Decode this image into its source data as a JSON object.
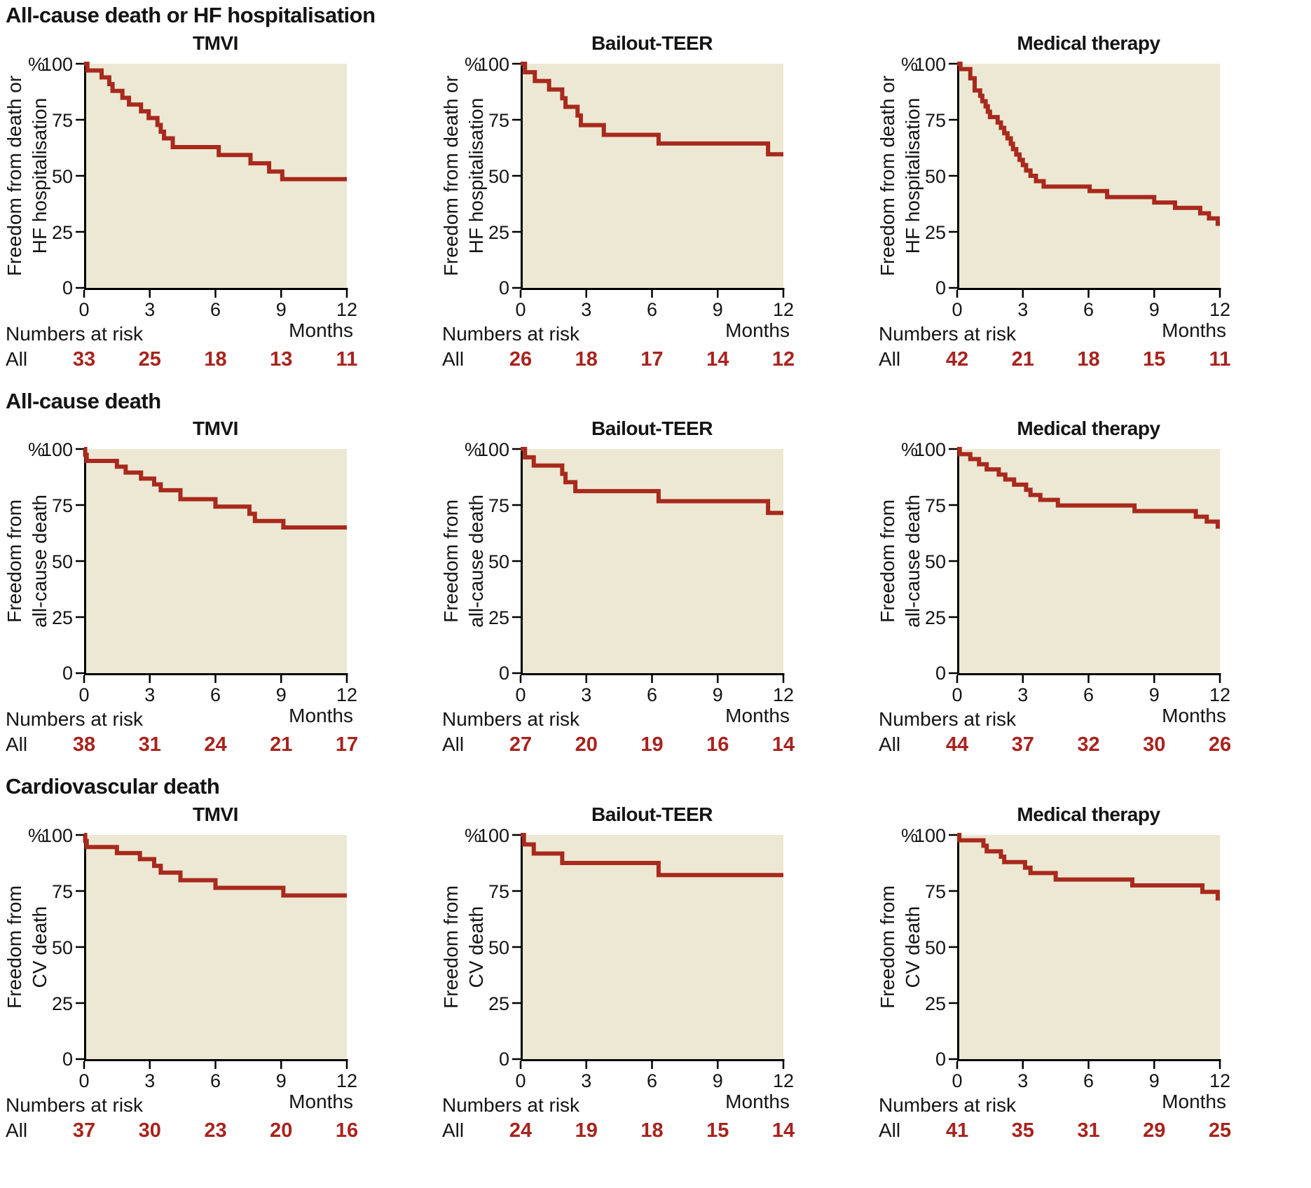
{
  "colors": {
    "curve": "#a8291d",
    "risk_number": "#a8231d",
    "plot_bg": "#ece8d3",
    "axis": "#000000"
  },
  "ui": {
    "percent": "%",
    "y_ticks": [
      "100",
      "75",
      "50",
      "25",
      "0"
    ],
    "x_ticks": [
      "0",
      "3",
      "6",
      "9",
      "12"
    ],
    "months": "Months",
    "numbers_at_risk": "Numbers at risk",
    "all": "All"
  },
  "chart_data": {
    "type": "line",
    "subtype": "kaplan-meier-step",
    "x_axis": {
      "label": "Months",
      "ticks": [
        0,
        3,
        6,
        9,
        12
      ],
      "range": [
        0,
        12
      ]
    },
    "y_axis": {
      "unit": "%",
      "ticks": [
        100,
        75,
        50,
        25,
        0
      ],
      "range": [
        0,
        100
      ]
    },
    "grid": false,
    "sections": [
      {
        "title": "All-cause death or HF hospitalisation",
        "ylabel": [
          "Freedom from death or",
          "HF hospitalisation"
        ],
        "panels": [
          {
            "title": "TMVI",
            "numbers_at_risk": {
              "label": "All",
              "values": [
                33,
                25,
                18,
                13,
                11
              ]
            },
            "curve_percent": [
              [
                0,
                100
              ],
              [
                0.15,
                97
              ],
              [
                0.8,
                93.9
              ],
              [
                1.15,
                90.9
              ],
              [
                1.3,
                87.9
              ],
              [
                1.75,
                84.8
              ],
              [
                2.05,
                81.8
              ],
              [
                2.6,
                78.8
              ],
              [
                2.95,
                75.8
              ],
              [
                3.35,
                72.7
              ],
              [
                3.5,
                69.7
              ],
              [
                3.65,
                66.7
              ],
              [
                4.05,
                62.8
              ],
              [
                6.15,
                59.3
              ],
              [
                7.6,
                55.6
              ],
              [
                8.45,
                51.9
              ],
              [
                9.05,
                48.5
              ]
            ]
          },
          {
            "title": "Bailout-TEER",
            "numbers_at_risk": {
              "label": "All",
              "values": [
                26,
                18,
                17,
                14,
                12
              ]
            },
            "curve_percent": [
              [
                0,
                100
              ],
              [
                0.2,
                96.2
              ],
              [
                0.65,
                92.3
              ],
              [
                1.3,
                88.5
              ],
              [
                1.9,
                84.6
              ],
              [
                2.05,
                80.8
              ],
              [
                2.6,
                76.9
              ],
              [
                2.75,
                72.6
              ],
              [
                3.8,
                68.3
              ],
              [
                6.3,
                64.4
              ],
              [
                11.3,
                59.6
              ]
            ]
          },
          {
            "title": "Medical therapy",
            "numbers_at_risk": {
              "label": "All",
              "values": [
                42,
                21,
                18,
                15,
                11
              ]
            },
            "curve_percent": [
              [
                0,
                100
              ],
              [
                0.15,
                97.6
              ],
              [
                0.6,
                93.5
              ],
              [
                0.8,
                88.1
              ],
              [
                1.05,
                85.7
              ],
              [
                1.15,
                83.3
              ],
              [
                1.3,
                81
              ],
              [
                1.4,
                78.6
              ],
              [
                1.5,
                76.2
              ],
              [
                1.85,
                73.8
              ],
              [
                2.0,
                71.4
              ],
              [
                2.15,
                69
              ],
              [
                2.3,
                66.7
              ],
              [
                2.45,
                64.3
              ],
              [
                2.55,
                61.9
              ],
              [
                2.7,
                59.5
              ],
              [
                2.85,
                57.1
              ],
              [
                3.0,
                54.8
              ],
              [
                3.15,
                52.4
              ],
              [
                3.35,
                50
              ],
              [
                3.6,
                47.6
              ],
              [
                3.95,
                45.2
              ],
              [
                6.05,
                43.2
              ],
              [
                6.85,
                40.5
              ],
              [
                9.0,
                38.1
              ],
              [
                9.95,
                35.7
              ],
              [
                11.1,
                33.3
              ],
              [
                11.5,
                31
              ],
              [
                11.9,
                28.6
              ]
            ]
          }
        ]
      },
      {
        "title": "All-cause death",
        "ylabel": [
          "Freedom from",
          "all-cause death"
        ],
        "panels": [
          {
            "title": "TMVI",
            "numbers_at_risk": {
              "label": "All",
              "values": [
                38,
                31,
                24,
                21,
                17
              ]
            },
            "curve_percent": [
              [
                0,
                100
              ],
              [
                0.05,
                97.4
              ],
              [
                0.12,
                94.7
              ],
              [
                1.5,
                92.1
              ],
              [
                1.9,
                89.5
              ],
              [
                2.6,
                86.8
              ],
              [
                3.2,
                84.2
              ],
              [
                3.5,
                81.6
              ],
              [
                4.4,
                77.6
              ],
              [
                6.0,
                74.3
              ],
              [
                7.55,
                71.1
              ],
              [
                7.8,
                67.9
              ],
              [
                9.1,
                65.0
              ]
            ]
          },
          {
            "title": "Bailout-TEER",
            "numbers_at_risk": {
              "label": "All",
              "values": [
                27,
                20,
                19,
                16,
                14
              ]
            },
            "curve_percent": [
              [
                0,
                100
              ],
              [
                0.2,
                96.3
              ],
              [
                0.6,
                92.6
              ],
              [
                1.9,
                88.9
              ],
              [
                2.05,
                85.2
              ],
              [
                2.5,
                81.2
              ],
              [
                6.3,
                76.7
              ],
              [
                11.3,
                71.5
              ]
            ]
          },
          {
            "title": "Medical therapy",
            "numbers_at_risk": {
              "label": "All",
              "values": [
                44,
                37,
                32,
                30,
                26
              ]
            },
            "curve_percent": [
              [
                0,
                100
              ],
              [
                0.12,
                97.7
              ],
              [
                0.6,
                95.5
              ],
              [
                1.0,
                93.2
              ],
              [
                1.35,
                90.9
              ],
              [
                1.9,
                88.6
              ],
              [
                2.2,
                86.4
              ],
              [
                2.6,
                84.1
              ],
              [
                3.15,
                81.8
              ],
              [
                3.35,
                79.5
              ],
              [
                3.8,
                77.3
              ],
              [
                4.6,
                74.8
              ],
              [
                8.1,
                72.3
              ],
              [
                10.9,
                69.8
              ],
              [
                11.4,
                67.6
              ],
              [
                11.9,
                65.4
              ]
            ]
          }
        ]
      },
      {
        "title": "Cardiovascular death",
        "ylabel": [
          "Freedom from",
          "CV death"
        ],
        "panels": [
          {
            "title": "TMVI",
            "numbers_at_risk": {
              "label": "All",
              "values": [
                37,
                30,
                23,
                20,
                16
              ]
            },
            "curve_percent": [
              [
                0,
                100
              ],
              [
                0.05,
                97.3
              ],
              [
                0.12,
                94.6
              ],
              [
                1.5,
                91.9
              ],
              [
                2.55,
                89.2
              ],
              [
                3.2,
                86.2
              ],
              [
                3.5,
                83.2
              ],
              [
                4.4,
                79.8
              ],
              [
                6.0,
                76.4
              ],
              [
                9.1,
                73.0
              ]
            ]
          },
          {
            "title": "Bailout-TEER",
            "numbers_at_risk": {
              "label": "All",
              "values": [
                24,
                19,
                18,
                15,
                14
              ]
            },
            "curve_percent": [
              [
                0,
                100
              ],
              [
                0.15,
                95.8
              ],
              [
                0.6,
                91.7
              ],
              [
                1.9,
                87.5
              ],
              [
                6.3,
                82.1
              ]
            ]
          },
          {
            "title": "Medical therapy",
            "numbers_at_risk": {
              "label": "All",
              "values": [
                41,
                35,
                31,
                29,
                25
              ]
            },
            "curve_percent": [
              [
                0,
                100
              ],
              [
                0.1,
                97.6
              ],
              [
                1.2,
                95.2
              ],
              [
                1.35,
                92.7
              ],
              [
                2.0,
                90.3
              ],
              [
                2.15,
                87.9
              ],
              [
                3.1,
                85.4
              ],
              [
                3.35,
                83.0
              ],
              [
                4.5,
                80.1
              ],
              [
                8.0,
                77.5
              ],
              [
                11.2,
                74.6
              ],
              [
                11.9,
                71.7
              ]
            ]
          }
        ]
      }
    ]
  }
}
